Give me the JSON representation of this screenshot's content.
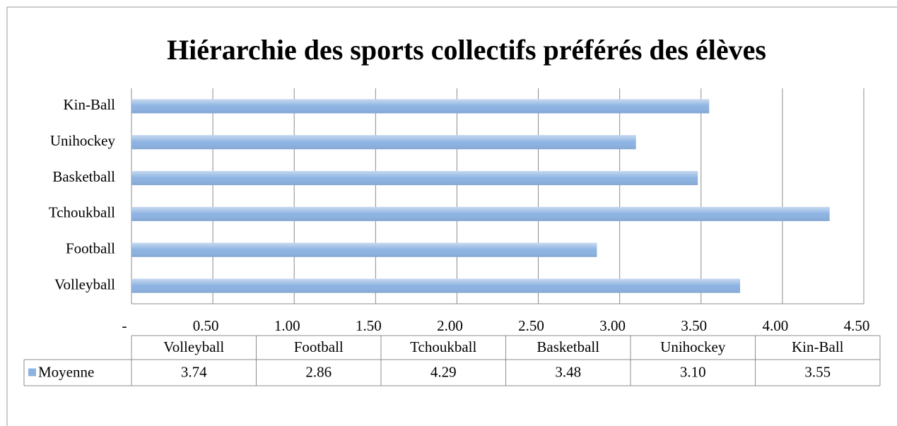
{
  "chart_data": {
    "type": "bar",
    "orientation": "horizontal",
    "title": "Hiérarchie des sports collectifs préférés des élèves",
    "categories": [
      "Volleyball",
      "Football",
      "Tchoukball",
      "Basketball",
      "Unihockey",
      "Kin-Ball"
    ],
    "series": [
      {
        "name": "Moyenne",
        "color": "#8db3e2",
        "values": [
          3.74,
          2.86,
          4.29,
          3.48,
          3.1,
          3.55
        ],
        "value_labels": [
          "3.74",
          "2.86",
          "4.29",
          "3.48",
          "3.10",
          "3.55"
        ]
      }
    ],
    "xlim": [
      0,
      4.5
    ],
    "xticks": [
      {
        "value": 0,
        "label": "-"
      },
      {
        "value": 0.5,
        "label": "0.50"
      },
      {
        "value": 1,
        "label": "1.00"
      },
      {
        "value": 1.5,
        "label": "1.50"
      },
      {
        "value": 2,
        "label": "2.00"
      },
      {
        "value": 2.5,
        "label": "2.50"
      },
      {
        "value": 3,
        "label": "3.00"
      },
      {
        "value": 3.5,
        "label": "3.50"
      },
      {
        "value": 4,
        "label": "4.00"
      },
      {
        "value": 4.5,
        "label": "4.50"
      }
    ],
    "grid": true,
    "data_table": true
  }
}
